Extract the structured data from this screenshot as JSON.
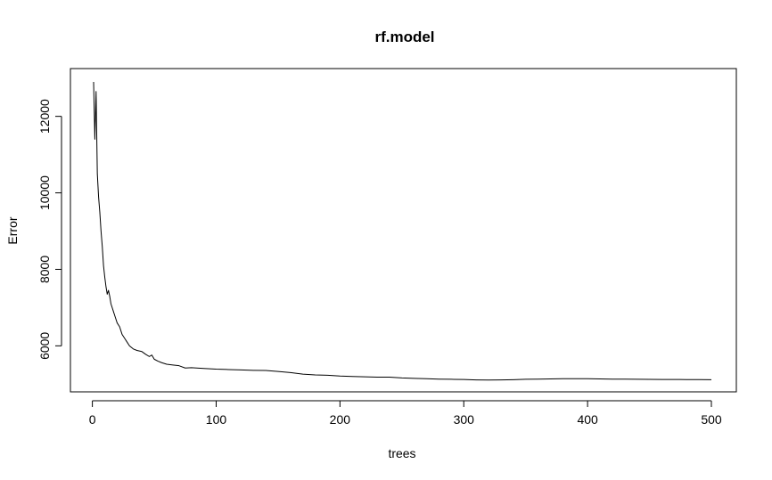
{
  "chart_data": {
    "type": "line",
    "title": "rf.model",
    "xlabel": "trees",
    "ylabel": "Error",
    "xlim": [
      1,
      500
    ],
    "ylim": [
      5100,
      12900
    ],
    "x_ticks": [
      0,
      100,
      200,
      300,
      400,
      500
    ],
    "y_ticks": [
      6000,
      8000,
      10000,
      12000
    ],
    "grid": false,
    "series": [
      {
        "color": "#000000",
        "x": [
          1,
          2,
          3,
          4,
          5,
          6,
          7,
          8,
          9,
          10,
          11,
          12,
          13,
          14,
          15,
          16,
          17,
          18,
          20,
          22,
          24,
          26,
          28,
          30,
          33,
          36,
          40,
          43,
          46,
          48,
          50,
          53,
          56,
          60,
          65,
          70,
          75,
          80,
          90,
          100,
          110,
          120,
          130,
          140,
          150,
          160,
          170,
          180,
          190,
          200,
          210,
          220,
          230,
          240,
          250,
          260,
          270,
          280,
          290,
          300,
          310,
          320,
          330,
          340,
          350,
          360,
          370,
          380,
          390,
          400,
          410,
          420,
          430,
          440,
          450,
          460,
          470,
          480,
          490,
          500
        ],
        "values": [
          12900,
          11400,
          12650,
          10500,
          9900,
          9500,
          9000,
          8600,
          8100,
          7800,
          7550,
          7350,
          7450,
          7300,
          7100,
          7000,
          6900,
          6800,
          6600,
          6500,
          6300,
          6200,
          6100,
          6000,
          5920,
          5880,
          5850,
          5780,
          5720,
          5760,
          5650,
          5600,
          5560,
          5520,
          5500,
          5480,
          5420,
          5430,
          5410,
          5390,
          5380,
          5370,
          5360,
          5355,
          5330,
          5300,
          5260,
          5240,
          5230,
          5210,
          5200,
          5190,
          5180,
          5180,
          5160,
          5150,
          5140,
          5130,
          5125,
          5120,
          5110,
          5105,
          5110,
          5115,
          5125,
          5130,
          5135,
          5140,
          5140,
          5140,
          5135,
          5130,
          5128,
          5125,
          5122,
          5120,
          5120,
          5118,
          5117,
          5115
        ]
      }
    ]
  }
}
